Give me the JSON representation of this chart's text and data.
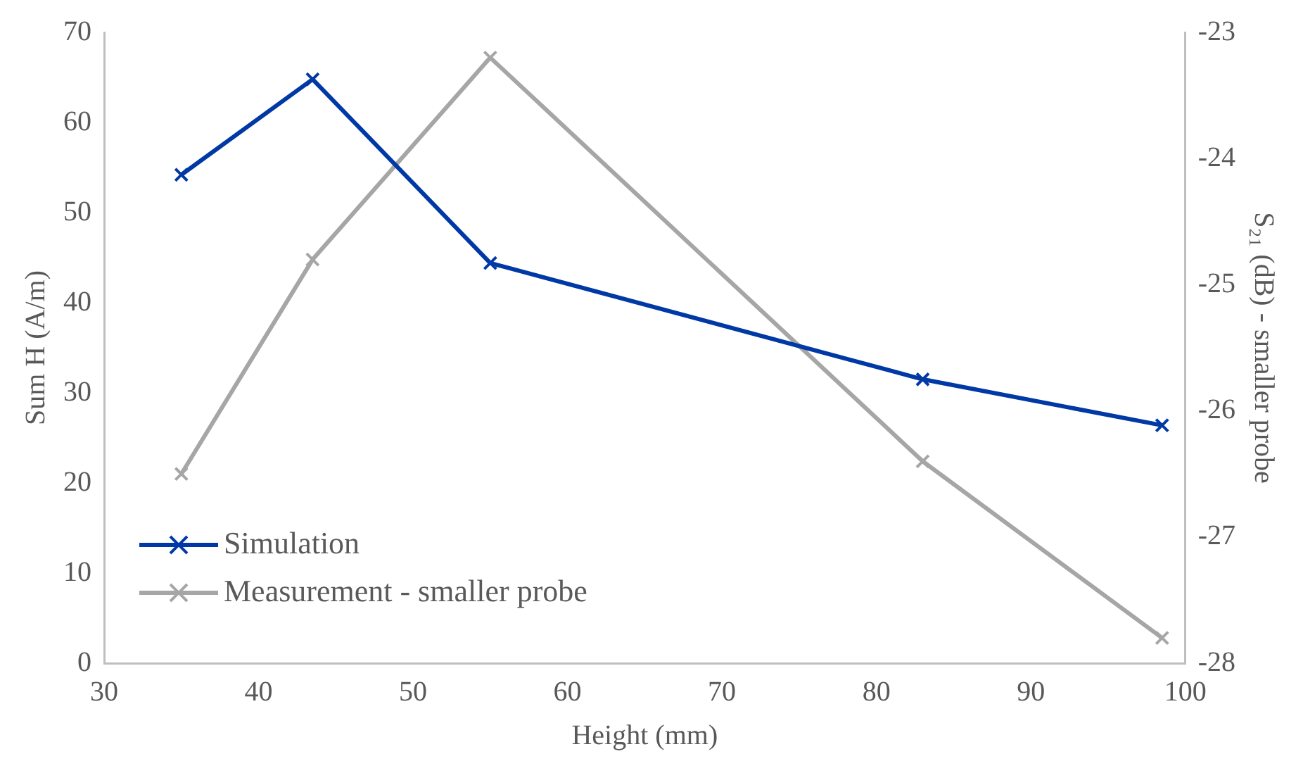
{
  "chart_data": {
    "type": "line",
    "xlabel": "Height (mm)",
    "ylabel": "Sum H (A/m)",
    "y2label": "S₂₁ (dB) - smaller probe",
    "series": [
      {
        "name": "Simulation",
        "color": "#0039a6",
        "x": [
          35,
          43.5,
          55,
          83,
          98.5
        ],
        "values": [
          54.2,
          64.8,
          44.4,
          31.5,
          26.4
        ]
      },
      {
        "name": "Measurement - smaller probe",
        "color": "#a6a6a6",
        "axis": "y2",
        "x": [
          35,
          43.5,
          55,
          83,
          98.5
        ],
        "values": [
          -26.5,
          -24.8,
          -23.2,
          -26.4,
          -27.8
        ]
      }
    ],
    "xlim": [
      30,
      100
    ],
    "xticks": [
      30,
      40,
      50,
      60,
      70,
      80,
      90,
      100
    ],
    "ylim": [
      0,
      70
    ],
    "yticks": [
      0,
      10,
      20,
      30,
      40,
      50,
      60,
      70
    ],
    "y2lim": [
      -28,
      -23
    ],
    "y2ticks": [
      -28,
      -27,
      -26,
      -25,
      -24,
      -23
    ],
    "grid": false,
    "legend": "bottom left",
    "marker": "cross",
    "line_style": "solid"
  }
}
